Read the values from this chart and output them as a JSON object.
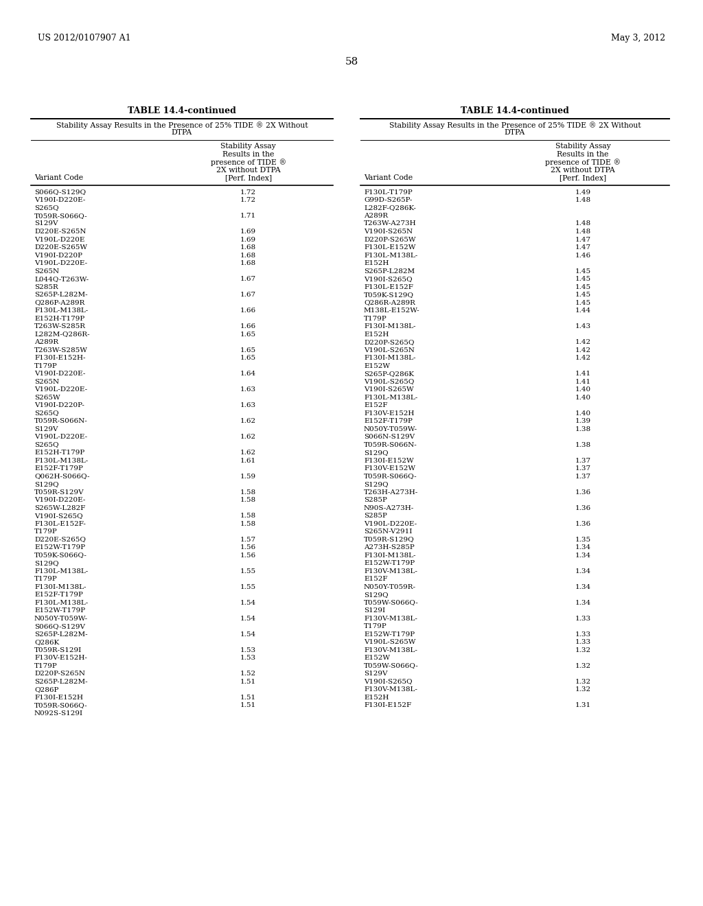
{
  "header_left": "US 2012/0107907 A1",
  "header_right": "May 3, 2012",
  "page_number": "58",
  "table_title": "TABLE 14.4-continued",
  "table_subtitle": "Stability Assay Results in the Presence of 25% TIDE ® 2X Without\nDTPA",
  "col_header1": "Variant Code",
  "col_header2": "Stability Assay\nResults in the\npresence of TIDE ®\n2X without DTPA\n[Perf. Index]",
  "left_data": [
    [
      "S066Q-S129Q",
      "1.72"
    ],
    [
      "V190I-D220E-\nS265Q",
      "1.72"
    ],
    [
      "T059R-S066Q-\nS129V",
      "1.71"
    ],
    [
      "D220E-S265N",
      "1.69"
    ],
    [
      "V190L-D220E",
      "1.69"
    ],
    [
      "D220E-S265W",
      "1.68"
    ],
    [
      "V190I-D220P",
      "1.68"
    ],
    [
      "V190L-D220E-\nS265N",
      "1.68"
    ],
    [
      "L044Q-T263W-\nS285R",
      "1.67"
    ],
    [
      "S265P-L282M-\nQ286P-A289R",
      "1.67"
    ],
    [
      "F130L-M138L-\nE152H-T179P",
      "1.66"
    ],
    [
      "T263W-S285R",
      "1.66"
    ],
    [
      "L282M-Q286R-\nA289R",
      "1.65"
    ],
    [
      "T263W-S285W",
      "1.65"
    ],
    [
      "F130I-E152H-\nT179P",
      "1.65"
    ],
    [
      "V190I-D220E-\nS265N",
      "1.64"
    ],
    [
      "V190L-D220E-\nS265W",
      "1.63"
    ],
    [
      "V190I-D220P-\nS265Q",
      "1.63"
    ],
    [
      "T059R-S066N-\nS129V",
      "1.62"
    ],
    [
      "V190L-D220E-\nS265Q",
      "1.62"
    ],
    [
      "E152H-T179P",
      "1.62"
    ],
    [
      "F130L-M138L-\nE152F-T179P",
      "1.61"
    ],
    [
      "Q062H-S066Q-\nS129Q",
      "1.59"
    ],
    [
      "T059R-S129V",
      "1.58"
    ],
    [
      "V190I-D220E-\nS265W-L282F",
      "1.58"
    ],
    [
      "V190I-S265Q",
      "1.58"
    ],
    [
      "F130L-E152F-\nT179P",
      "1.58"
    ],
    [
      "D220E-S265Q",
      "1.57"
    ],
    [
      "E152W-T179P",
      "1.56"
    ],
    [
      "T059K-S066Q-\nS129Q",
      "1.56"
    ],
    [
      "F130L-M138L-\nT179P",
      "1.55"
    ],
    [
      "F130I-M138L-\nE152F-T179P",
      "1.55"
    ],
    [
      "F130L-M138L-\nE152W-T179P",
      "1.54"
    ],
    [
      "N050Y-T059W-\nS066Q-S129V",
      "1.54"
    ],
    [
      "S265P-L282M-\nQ286K",
      "1.54"
    ],
    [
      "T059R-S129I",
      "1.53"
    ],
    [
      "F130V-E152H-\nT179P",
      "1.53"
    ],
    [
      "D220P-S265N",
      "1.52"
    ],
    [
      "S265P-L282M-\nQ286P",
      "1.51"
    ],
    [
      "F130I-E152H",
      "1.51"
    ],
    [
      "T059R-S066Q-\nN092S-S129I",
      "1.51"
    ]
  ],
  "right_data": [
    [
      "F130L-T179P",
      "1.49"
    ],
    [
      "G99D-S265P-\nL282F-Q286K-\nA289R",
      "1.48"
    ],
    [
      "T263W-A273H",
      "1.48"
    ],
    [
      "V190I-S265N",
      "1.48"
    ],
    [
      "D220P-S265W",
      "1.47"
    ],
    [
      "F130L-E152W",
      "1.47"
    ],
    [
      "F130L-M138L-\nE152H",
      "1.46"
    ],
    [
      "S265P-L282M",
      "1.45"
    ],
    [
      "V190I-S265Q",
      "1.45"
    ],
    [
      "F130L-E152F",
      "1.45"
    ],
    [
      "T059K-S129Q",
      "1.45"
    ],
    [
      "Q286R-A289R",
      "1.45"
    ],
    [
      "M138L-E152W-\nT179P",
      "1.44"
    ],
    [
      "F130I-M138L-\nE152H",
      "1.43"
    ],
    [
      "D220P-S265Q",
      "1.42"
    ],
    [
      "V190L-S265N",
      "1.42"
    ],
    [
      "F130I-M138L-\nE152W",
      "1.42"
    ],
    [
      "S265P-Q286K",
      "1.41"
    ],
    [
      "V190L-S265Q",
      "1.41"
    ],
    [
      "V190I-S265W",
      "1.40"
    ],
    [
      "F130L-M138L-\nE152F",
      "1.40"
    ],
    [
      "F130V-E152H",
      "1.40"
    ],
    [
      "E152F-T179P",
      "1.39"
    ],
    [
      "N050Y-T059W-\nS066N-S129V",
      "1.38"
    ],
    [
      "T059R-S066N-\nS129Q",
      "1.38"
    ],
    [
      "F130I-E152W",
      "1.37"
    ],
    [
      "F130V-E152W",
      "1.37"
    ],
    [
      "T059R-S066Q-\nS129Q",
      "1.37"
    ],
    [
      "T263H-A273H-\nS285P",
      "1.36"
    ],
    [
      "N90S-A273H-\nS285P",
      "1.36"
    ],
    [
      "V190L-D220E-\nS265N-V291I",
      "1.36"
    ],
    [
      "T059R-S129Q",
      "1.35"
    ],
    [
      "A273H-S285P",
      "1.34"
    ],
    [
      "F130I-M138L-\nE152W-T179P",
      "1.34"
    ],
    [
      "F130V-M138L-\nE152F",
      "1.34"
    ],
    [
      "N050Y-T059R-\nS129Q",
      "1.34"
    ],
    [
      "T059W-S066Q-\nS129I",
      "1.34"
    ],
    [
      "F130V-M138L-\nT179P",
      "1.33"
    ],
    [
      "E152W-T179P",
      "1.33"
    ],
    [
      "V190L-S265W",
      "1.33"
    ],
    [
      "F130V-M138L-\nE152W",
      "1.32"
    ],
    [
      "T059W-S066Q-\nS129V",
      "1.32"
    ],
    [
      "V190I-S265Q",
      "1.32"
    ],
    [
      "F130V-M138L-\nE152H",
      "1.32"
    ],
    [
      "F130I-E152F",
      "1.31"
    ]
  ]
}
